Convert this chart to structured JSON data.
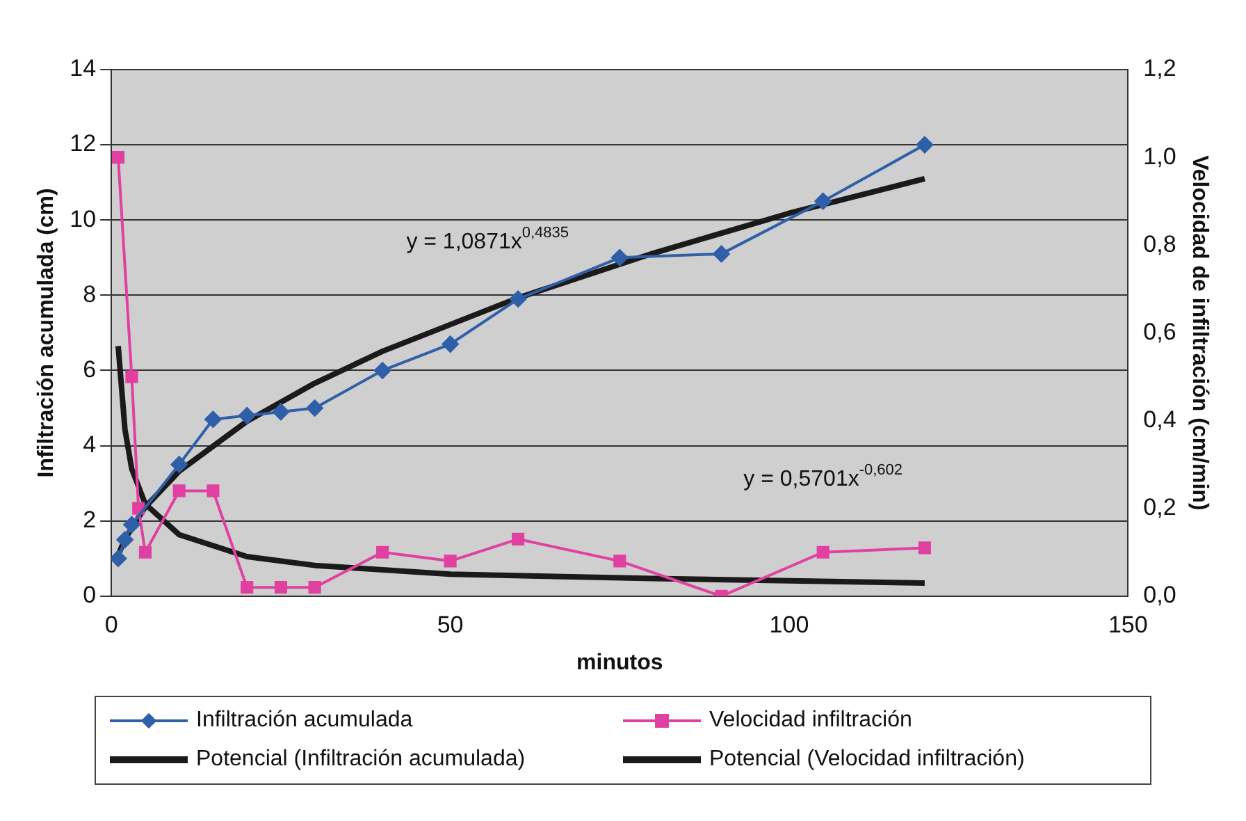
{
  "chart_data": {
    "type": "line",
    "xlabel": "minutos",
    "ylabel": "Infiltración acumulada (cm)",
    "y2label": "Velocidad de infiltración (cm/min)",
    "xlim": [
      0,
      150
    ],
    "xticks": [
      0,
      50,
      100,
      150
    ],
    "ylim": [
      0,
      14
    ],
    "yticks": [
      0,
      2,
      4,
      6,
      8,
      10,
      12,
      14
    ],
    "y2lim": [
      0,
      1.2
    ],
    "y2ticks": [
      {
        "value": 0,
        "label": "0,0"
      },
      {
        "value": 0.2,
        "label": "0,2"
      },
      {
        "value": 0.4,
        "label": "0,4"
      },
      {
        "value": 0.6,
        "label": "0,6"
      },
      {
        "value": 0.8,
        "label": "0,8"
      },
      {
        "value": 1,
        "label": "1,0"
      },
      {
        "value": 1.2,
        "label": "1,2"
      }
    ],
    "grid": "y",
    "legend": "bottom",
    "series": [
      {
        "name": "Infiltración acumulada",
        "color": "#2f5fa8",
        "marker": "diamond",
        "x": [
          1,
          2,
          3,
          10,
          15,
          20,
          25,
          30,
          40,
          50,
          60,
          75,
          90,
          105,
          120
        ],
        "values": [
          1.0,
          1.5,
          1.9,
          3.5,
          4.7,
          4.8,
          4.9,
          5.0,
          6.0,
          6.7,
          7.9,
          9.0,
          9.1,
          10.5,
          12.0
        ]
      },
      {
        "name": "Velocidad infiltración",
        "color": "#e040a0",
        "marker": "square",
        "axis": "y2",
        "x": [
          1,
          3,
          4,
          5,
          10,
          15,
          20,
          25,
          30,
          40,
          50,
          60,
          75,
          90,
          105,
          120
        ],
        "values": [
          1.0,
          0.5,
          0.2,
          0.1,
          0.24,
          0.24,
          0.02,
          0.02,
          0.02,
          0.1,
          0.08,
          0.13,
          0.08,
          0.0,
          0.1,
          0.11
        ]
      },
      {
        "name": "Potencial (Infiltración acumulada)",
        "color": "#1a1a1a",
        "marker": "none",
        "x": [
          1,
          2,
          5,
          10,
          20,
          30,
          40,
          60,
          80,
          100,
          120
        ],
        "values": [
          1.09,
          1.52,
          2.37,
          3.32,
          4.65,
          5.66,
          6.51,
          7.93,
          9.12,
          10.18,
          11.1
        ]
      },
      {
        "name": "Potencial (Velocidad infiltración)",
        "color": "#1a1a1a",
        "marker": "none",
        "axis": "y2",
        "x": [
          1,
          2,
          3,
          5,
          10,
          20,
          30,
          50,
          80,
          120
        ],
        "values": [
          0.57,
          0.38,
          0.29,
          0.21,
          0.14,
          0.09,
          0.07,
          0.05,
          0.04,
          0.03
        ]
      }
    ],
    "annotations": [
      "y = 1,0871x$^{0,4835}$",
      "y = 0,5701x$^{-0,602}$"
    ]
  }
}
